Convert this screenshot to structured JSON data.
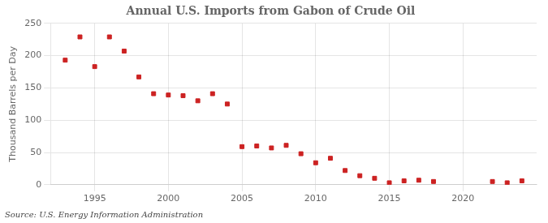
{
  "chart_data": {
    "type": "scatter",
    "title": "Annual U.S. Imports from Gabon of Crude Oil",
    "y_label": "Thousand Barrels per Day",
    "annotations": [
      "Source: U.S. Energy Information Administration"
    ],
    "x": [
      1993,
      1994,
      1995,
      1996,
      1997,
      1998,
      1999,
      2000,
      2001,
      2002,
      2003,
      2004,
      2005,
      2006,
      2007,
      2008,
      2009,
      2010,
      2011,
      2012,
      2013,
      2014,
      2015,
      2016,
      2017,
      2018,
      2022,
      2023,
      2024
    ],
    "values": [
      193,
      229,
      183,
      229,
      207,
      167,
      141,
      139,
      138,
      130,
      141,
      125,
      59,
      60,
      57,
      61,
      48,
      34,
      41,
      22,
      14,
      10,
      3,
      6,
      7,
      5,
      5,
      3,
      6
    ],
    "color": "#cc2222",
    "marker": "square",
    "xlim": [
      1992,
      2025
    ],
    "xticks": [
      1995,
      2000,
      2005,
      2010,
      2015,
      2020
    ],
    "ylim": [
      0,
      250
    ],
    "yticks": [
      0,
      50,
      100,
      150,
      200,
      250
    ],
    "grid": true
  }
}
